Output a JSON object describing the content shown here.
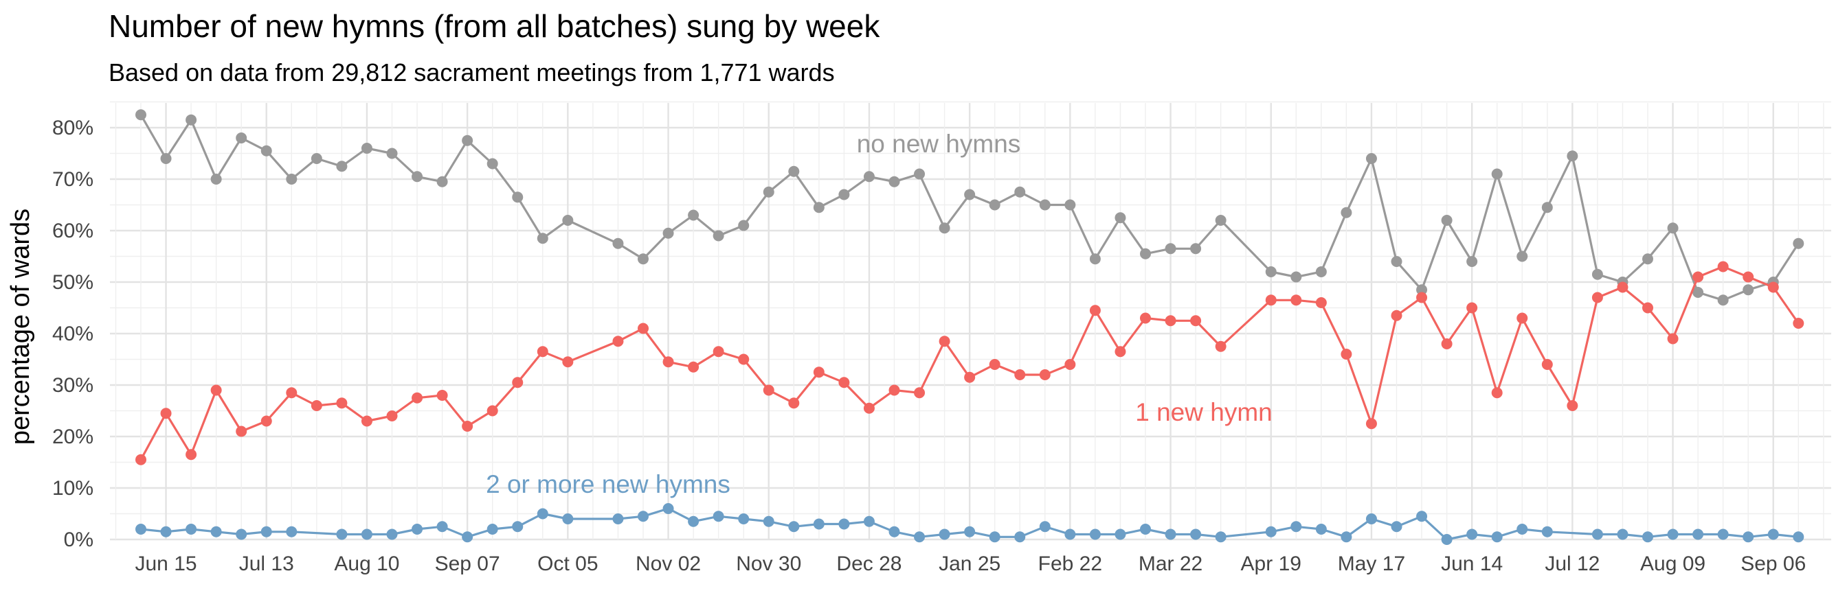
{
  "chart_data": {
    "type": "line",
    "title": "Number of new hymns (from all batches) sung by week",
    "subtitle": "Based on data from 29,812 sacrament meetings from 1,771 wards",
    "xlabel": "",
    "ylabel": "percentage of wards",
    "y_ticks": [
      "0%",
      "10%",
      "20%",
      "30%",
      "40%",
      "50%",
      "60%",
      "70%",
      "80%"
    ],
    "ylim": [
      0,
      85
    ],
    "x_ticks": [
      "Jun 15",
      "Jul 13",
      "Aug 10",
      "Sep 07",
      "Oct 05",
      "Nov 02",
      "Nov 30",
      "Dec 28",
      "Jan 25",
      "Feb 22",
      "Mar 22",
      "Apr 19",
      "May 17",
      "Jun 14",
      "Jul 12",
      "Aug 09",
      "Sep 06"
    ],
    "grid": true,
    "legend": "none",
    "series": [
      {
        "name": "no new hymns",
        "color": "#999999",
        "points": [
          [
            0,
            82.5
          ],
          [
            1,
            74
          ],
          [
            2,
            81.5
          ],
          [
            3,
            70
          ],
          [
            4,
            78
          ],
          [
            5,
            75.5
          ],
          [
            6,
            70
          ],
          [
            7,
            74
          ],
          [
            8,
            72.5
          ],
          [
            9,
            76
          ],
          [
            10,
            75
          ],
          [
            11,
            70.5
          ],
          [
            12,
            69.5
          ],
          [
            13,
            77.5
          ],
          [
            14,
            73
          ],
          [
            15,
            66.5
          ],
          [
            16,
            58.5
          ],
          [
            17,
            62
          ],
          [
            19,
            57.5
          ],
          [
            20,
            54.5
          ],
          [
            21,
            59.5
          ],
          [
            22,
            63
          ],
          [
            23,
            59
          ],
          [
            24,
            61
          ],
          [
            25,
            67.5
          ],
          [
            26,
            71.5
          ],
          [
            27,
            64.5
          ],
          [
            28,
            67
          ],
          [
            29,
            70.5
          ],
          [
            30,
            69.5
          ],
          [
            31,
            71
          ],
          [
            32,
            60.5
          ],
          [
            33,
            67
          ],
          [
            34,
            65
          ],
          [
            35,
            67.5
          ],
          [
            36,
            65
          ],
          [
            37,
            65
          ],
          [
            38,
            54.5
          ],
          [
            39,
            62.5
          ],
          [
            40,
            55.5
          ],
          [
            41,
            56.5
          ],
          [
            42,
            56.5
          ],
          [
            43,
            62
          ],
          [
            45,
            52
          ],
          [
            46,
            51
          ],
          [
            47,
            52
          ],
          [
            48,
            63.5
          ],
          [
            49,
            74
          ],
          [
            50,
            54
          ],
          [
            51,
            48.5
          ],
          [
            52,
            62
          ],
          [
            53,
            54
          ],
          [
            54,
            71
          ],
          [
            55,
            55
          ],
          [
            56,
            64.5
          ],
          [
            57,
            74.5
          ],
          [
            58,
            51.5
          ],
          [
            59,
            50
          ],
          [
            60,
            54.5
          ],
          [
            61,
            60.5
          ],
          [
            62,
            48
          ],
          [
            63,
            46.5
          ],
          [
            64,
            48.5
          ],
          [
            65,
            50
          ],
          [
            66,
            57.5
          ]
        ]
      },
      {
        "name": "1 new hymn",
        "color": "#F2645F",
        "points": [
          [
            0,
            15.5
          ],
          [
            1,
            24.5
          ],
          [
            2,
            16.5
          ],
          [
            3,
            29
          ],
          [
            4,
            21
          ],
          [
            5,
            23
          ],
          [
            6,
            28.5
          ],
          [
            7,
            26
          ],
          [
            8,
            26.5
          ],
          [
            9,
            23
          ],
          [
            10,
            24
          ],
          [
            11,
            27.5
          ],
          [
            12,
            28
          ],
          [
            13,
            22
          ],
          [
            14,
            25
          ],
          [
            15,
            30.5
          ],
          [
            16,
            36.5
          ],
          [
            17,
            34.5
          ],
          [
            19,
            38.5
          ],
          [
            20,
            41
          ],
          [
            21,
            34.5
          ],
          [
            22,
            33.5
          ],
          [
            23,
            36.5
          ],
          [
            24,
            35
          ],
          [
            25,
            29
          ],
          [
            26,
            26.5
          ],
          [
            27,
            32.5
          ],
          [
            28,
            30.5
          ],
          [
            29,
            25.5
          ],
          [
            30,
            29
          ],
          [
            31,
            28.5
          ],
          [
            32,
            38.5
          ],
          [
            33,
            31.5
          ],
          [
            34,
            34
          ],
          [
            35,
            32
          ],
          [
            36,
            32
          ],
          [
            37,
            34
          ],
          [
            38,
            44.5
          ],
          [
            39,
            36.5
          ],
          [
            40,
            43
          ],
          [
            41,
            42.5
          ],
          [
            42,
            42.5
          ],
          [
            43,
            37.5
          ],
          [
            45,
            46.5
          ],
          [
            46,
            46.5
          ],
          [
            47,
            46
          ],
          [
            48,
            36
          ],
          [
            49,
            22.5
          ],
          [
            50,
            43.5
          ],
          [
            51,
            47
          ],
          [
            52,
            38
          ],
          [
            53,
            45
          ],
          [
            54,
            28.5
          ],
          [
            55,
            43
          ],
          [
            56,
            34
          ],
          [
            57,
            26
          ],
          [
            58,
            47
          ],
          [
            59,
            49
          ],
          [
            60,
            45
          ],
          [
            61,
            39
          ],
          [
            62,
            51
          ],
          [
            63,
            53
          ],
          [
            64,
            51
          ],
          [
            65,
            49
          ],
          [
            66,
            42
          ]
        ]
      },
      {
        "name": "2 or more new hymns",
        "color": "#6C9EC6",
        "points": [
          [
            0,
            2
          ],
          [
            1,
            1.5
          ],
          [
            2,
            2
          ],
          [
            3,
            1.5
          ],
          [
            4,
            1
          ],
          [
            5,
            1.5
          ],
          [
            6,
            1.5
          ],
          [
            8,
            1
          ],
          [
            9,
            1
          ],
          [
            10,
            1
          ],
          [
            11,
            2
          ],
          [
            12,
            2.5
          ],
          [
            13,
            0.5
          ],
          [
            14,
            2
          ],
          [
            15,
            2.5
          ],
          [
            16,
            5
          ],
          [
            17,
            4
          ],
          [
            19,
            4
          ],
          [
            20,
            4.5
          ],
          [
            21,
            6
          ],
          [
            22,
            3.5
          ],
          [
            23,
            4.5
          ],
          [
            24,
            4
          ],
          [
            25,
            3.5
          ],
          [
            26,
            2.5
          ],
          [
            27,
            3
          ],
          [
            28,
            3
          ],
          [
            29,
            3.5
          ],
          [
            30,
            1.5
          ],
          [
            31,
            0.5
          ],
          [
            32,
            1
          ],
          [
            33,
            1.5
          ],
          [
            34,
            0.5
          ],
          [
            35,
            0.5
          ],
          [
            36,
            2.5
          ],
          [
            37,
            1
          ],
          [
            38,
            1
          ],
          [
            39,
            1
          ],
          [
            40,
            2
          ],
          [
            41,
            1
          ],
          [
            42,
            1
          ],
          [
            43,
            0.5
          ],
          [
            45,
            1.5
          ],
          [
            46,
            2.5
          ],
          [
            47,
            2
          ],
          [
            48,
            0.5
          ],
          [
            49,
            4
          ],
          [
            50,
            2.5
          ],
          [
            51,
            4.5
          ],
          [
            52,
            0
          ],
          [
            53,
            1
          ],
          [
            54,
            0.5
          ],
          [
            55,
            2
          ],
          [
            56,
            1.5
          ],
          [
            58,
            1
          ],
          [
            59,
            1
          ],
          [
            60,
            0.5
          ],
          [
            61,
            1
          ],
          [
            62,
            1
          ],
          [
            63,
            1
          ],
          [
            64,
            0.5
          ],
          [
            65,
            1
          ],
          [
            66,
            0.5
          ]
        ]
      }
    ],
    "annotations": [
      {
        "text": "no new hymns",
        "series": 0
      },
      {
        "text": "1 new hymn",
        "series": 1
      },
      {
        "text": "2 or more new hymns",
        "series": 2
      }
    ]
  }
}
